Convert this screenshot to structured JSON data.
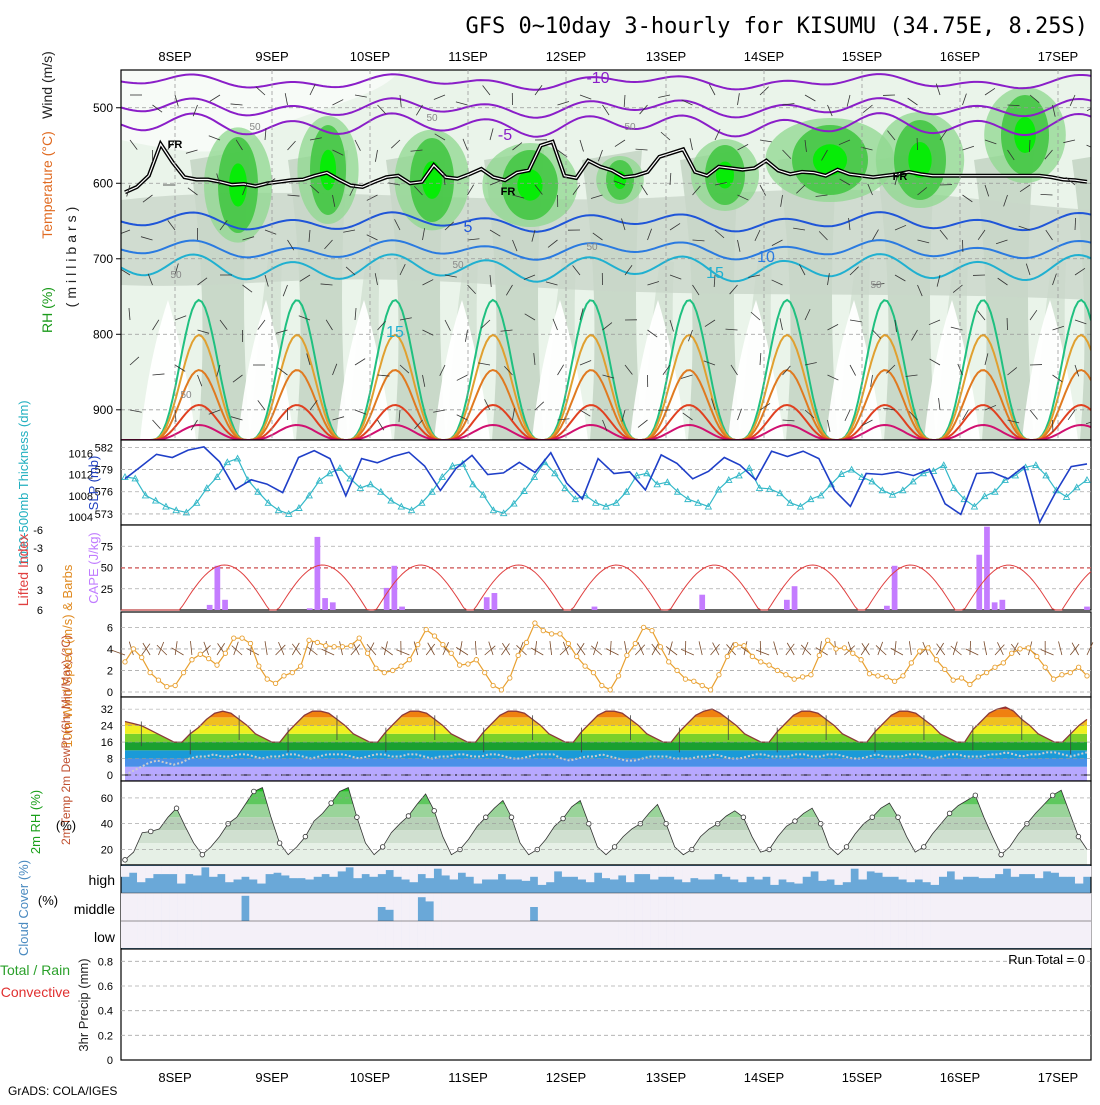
{
  "page": {
    "title": "GFS 0~10day 3-hourly for KISUMU (34.75E, 8.25S)",
    "footer": "GrADS: COLA/IGES",
    "day_labels": [
      "8SEP",
      "9SEP",
      "10SEP",
      "11SEP",
      "12SEP",
      "13SEP",
      "14SEP",
      "15SEP",
      "16SEP",
      "17SEP"
    ]
  },
  "chart_data": [
    {
      "type": "heatmap",
      "panel": "upper-air",
      "ylabel_parts": {
        "rh": "RH (%)",
        "temp": "Temperature (°C)",
        "wind": "Wind (m/s)",
        "units": "(millibars)"
      },
      "yticks": [
        500,
        600,
        700,
        800,
        900
      ],
      "ylim": [
        940,
        450
      ],
      "isotherm_labels": [
        "-10",
        "-5",
        "5",
        "10",
        "15",
        "15"
      ],
      "freezing_level_label": "FR",
      "rh_contour_label": "50",
      "freezing_level_mb": [
        612,
        605,
        590,
        548,
        572,
        592,
        595,
        595,
        598,
        602,
        601,
        604,
        600,
        598,
        596,
        595,
        590,
        586,
        595,
        603,
        605,
        598,
        592,
        590,
        600,
        598,
        576,
        592,
        594,
        588,
        581,
        592,
        596,
        586,
        583,
        550,
        545,
        590,
        593,
        570,
        578,
        583,
        592,
        590,
        585,
        565,
        560,
        555,
        585,
        590,
        578,
        580,
        582,
        580,
        570,
        583,
        588,
        585,
        586,
        590,
        582,
        588,
        590,
        592,
        590,
        588,
        585,
        588,
        590,
        590,
        590,
        590,
        590,
        590,
        590,
        590,
        590,
        590,
        592,
        595,
        596,
        598
      ]
    },
    {
      "type": "line",
      "panel": "thickness-slp",
      "ylabel_left": "1000-500mb Thickness (dm)",
      "ylabel_right": "SLP (mb)",
      "left_ticks": [
        573,
        576,
        579,
        582
      ],
      "right_ticks": [
        1004,
        1008,
        1012,
        1016
      ],
      "thickness_dm": [
        578.0,
        577.8,
        575.5,
        574.8,
        574.0,
        573.5,
        573.2,
        574.5,
        576.5,
        578.0,
        580.0,
        580.5,
        577.6,
        576.0,
        574.5,
        573.5,
        573.0,
        573.8,
        575.5,
        577.5,
        578.5,
        579.2,
        577.8,
        576.5,
        577.0,
        576.0,
        574.8,
        574.0,
        573.5,
        574.5,
        576.0,
        578.0,
        579.5,
        579.8,
        577.0,
        575.6,
        573.5,
        573.1,
        574.4,
        576.1,
        578.0,
        580.0,
        578.5,
        576.5,
        575.0,
        575.5,
        574.5,
        574.0,
        574.5,
        576.0,
        578.2,
        578.5,
        577.0,
        577.3,
        576.0,
        575.0,
        574.5,
        574.0,
        576.3,
        577.6,
        578.2,
        579.2,
        576.5,
        576.4,
        575.8,
        574.5,
        574.0,
        575.0,
        575.5,
        577.0,
        578.4,
        579.0,
        578.0,
        577.4,
        576.2,
        575.6,
        576.2,
        577.4,
        578.5,
        578.8,
        579.6,
        576.5,
        575.0,
        574.0,
        575.4,
        576.0,
        577.6,
        578.2,
        579.3,
        579.6,
        578.2,
        576.2,
        575.3,
        576.6,
        577.6
      ],
      "slp_mb": [
        1011.2,
        1013.5,
        1015.8,
        1015.2,
        1016.6,
        1017.2,
        1014.4,
        1009.2,
        1011.0,
        1010.2,
        1008.6,
        1015.2,
        1016.5,
        1015.0,
        1008.0,
        1015.0,
        1014.2,
        1015.4,
        1016.2,
        1013.6,
        1009.0,
        1013.2,
        1015.6,
        1012.0,
        1012.3,
        1014.3,
        1012.4,
        1016.1,
        1010.4,
        1007.4,
        1015.0,
        1012.2,
        1012.5,
        1009.1,
        1015.7,
        1014.1,
        1011.2,
        1012.6,
        1015.2,
        1013.8,
        1011.0,
        1016.4,
        1015.4,
        1016.4,
        1015.0,
        1009.0,
        1006.0,
        1012.2,
        1012.0,
        1012.5,
        1011.8,
        1013.0,
        1006.5,
        1004.5,
        1012.2,
        1012.4,
        1011.2,
        1013.5,
        1003.0,
        1008.6,
        1013.5,
        1014.0
      ]
    },
    {
      "type": "bar",
      "panel": "cape-lifted-index",
      "ylabel_left": "Lifted Index",
      "ylabel_right": "CAPE (J/kg)",
      "left_ticks": [
        "6",
        "3",
        "0",
        "-3",
        "-6"
      ],
      "right_ticks": [
        25,
        50,
        75
      ],
      "cape_jkg": [
        0,
        0,
        0,
        0,
        0,
        0,
        0,
        0,
        0,
        0,
        0,
        6,
        52,
        12,
        0,
        0,
        0,
        0,
        0,
        0,
        0,
        0,
        0,
        0,
        2,
        86,
        14,
        9,
        0,
        0,
        0,
        0,
        0,
        0,
        26,
        52,
        4,
        0,
        0,
        0,
        0,
        0,
        0,
        0,
        0,
        0,
        0,
        15,
        20,
        0,
        0,
        0,
        0,
        0,
        0,
        0,
        0,
        0,
        0,
        0,
        0,
        4,
        0,
        0,
        0,
        0,
        0,
        0,
        0,
        0,
        0,
        0,
        0,
        0,
        0,
        18,
        0,
        0,
        0,
        0,
        0,
        0,
        0,
        0,
        0,
        0,
        12,
        28,
        0,
        0,
        0,
        0,
        0,
        0,
        0,
        0,
        0,
        0,
        0,
        5,
        52,
        0,
        0,
        0,
        0,
        0,
        0,
        0,
        0,
        0,
        0,
        65,
        98,
        9,
        12,
        0,
        0,
        0,
        0,
        0,
        0,
        0,
        0,
        0,
        0,
        4
      ]
    },
    {
      "type": "line",
      "panel": "wind-10m",
      "ylabel": "10m Wind Speed (m/s) & Barbs",
      "yticks": [
        0,
        2,
        4,
        6
      ],
      "ylim": [
        0,
        7
      ],
      "speed_ms": [
        2.8,
        4.0,
        3.2,
        1.8,
        1.1,
        0.5,
        0.6,
        1.8,
        3.0,
        3.5,
        3.1,
        2.5,
        3.6,
        5.0,
        5.0,
        4.5,
        2.4,
        1.2,
        0.8,
        1.5,
        1.8,
        2.4,
        4.8,
        4.6,
        4.3,
        4.2,
        4.2,
        4.3,
        5.0,
        3.6,
        2.2,
        1.8,
        2.0,
        2.4,
        3.0,
        4.4,
        5.8,
        5.2,
        4.4,
        3.6,
        2.5,
        2.6,
        3.0,
        1.8,
        0.6,
        0.2,
        1.3,
        3.4,
        4.6,
        6.4,
        5.7,
        5.4,
        5.4,
        4.5,
        3.3,
        2.4,
        1.8,
        0.6,
        0.2,
        1.5,
        3.4,
        4.5,
        6.0,
        5.7,
        4.2,
        2.8,
        2.0,
        1.2,
        1.0,
        0.6,
        0.2,
        1.6,
        3.3,
        4.4,
        4.3,
        3.3,
        2.8,
        2.5,
        2.0,
        1.6,
        1.2,
        1.4,
        1.6,
        3.4,
        4.8,
        4.0,
        4.1,
        3.6,
        3.0,
        1.7,
        1.5,
        1.4,
        1.0,
        1.5,
        2.7,
        3.8,
        4.1,
        3.0,
        2.1,
        1.1,
        1.3,
        0.7,
        1.4,
        1.8,
        2.3,
        2.7,
        3.6,
        4.0,
        4.1,
        3.3,
        2.3,
        1.2,
        1.6,
        1.8,
        2.3,
        1.5
      ]
    },
    {
      "type": "area",
      "panel": "temp-dewpoint",
      "ylabel": "2m Temp 2m DewPt (6hr Min/Max) (°C)",
      "yticks": [
        0,
        8,
        16,
        24,
        32
      ],
      "ylim": [
        -1,
        35
      ],
      "temp_c": [
        26,
        25,
        24,
        22,
        20,
        18,
        16,
        16,
        20,
        23,
        27,
        30,
        31,
        30,
        27,
        24,
        20,
        18,
        16,
        16,
        21,
        25,
        29,
        31,
        31,
        30,
        27,
        24,
        20,
        18,
        16,
        16,
        21,
        25,
        29,
        31,
        31,
        30,
        27,
        24,
        20,
        18,
        16,
        16,
        21,
        25,
        29,
        31,
        31,
        30,
        27,
        24,
        20,
        18,
        16,
        16,
        21,
        25,
        29,
        31,
        31,
        30,
        27,
        24,
        20,
        18,
        16,
        16,
        21,
        25,
        29,
        31,
        32,
        30,
        27,
        24,
        20,
        18,
        16,
        16,
        21,
        25,
        29,
        31,
        31,
        30,
        27,
        24,
        20,
        18,
        16,
        16,
        21,
        25,
        29,
        31,
        31,
        30,
        27,
        24,
        20,
        18,
        16,
        16,
        22,
        26,
        30,
        32,
        33,
        31,
        27,
        24,
        20,
        18,
        16,
        16,
        20,
        24,
        27
      ],
      "dewpoint_c": [
        0,
        2,
        4,
        6,
        7,
        6,
        5,
        6,
        8,
        9,
        9,
        10,
        9,
        9,
        10,
        10,
        9,
        8,
        9,
        9,
        10,
        10,
        9,
        8,
        9,
        10,
        10,
        10,
        9,
        8,
        9,
        10,
        10,
        9,
        9,
        10,
        10,
        9,
        8,
        9,
        9,
        10,
        10,
        9,
        9,
        10,
        10,
        9,
        8,
        8,
        9,
        10,
        10,
        10,
        8,
        7,
        8,
        9,
        9,
        10,
        9,
        8,
        7,
        7,
        8,
        9,
        9,
        9,
        8,
        8,
        8,
        9,
        9,
        10,
        9,
        8,
        8,
        9,
        10,
        10,
        9,
        9,
        9,
        10,
        10,
        9,
        9,
        10,
        10,
        9,
        8,
        8,
        9,
        10,
        9,
        9,
        9,
        10,
        10,
        9,
        8,
        9,
        10,
        10,
        9,
        9,
        9,
        10,
        10,
        11,
        10,
        9,
        10,
        10,
        11,
        11,
        10,
        9,
        10,
        11
      ]
    },
    {
      "type": "area",
      "panel": "relative-humidity",
      "ylabel": "2m RH (%)",
      "yticks": [
        20,
        40,
        60
      ],
      "ylim": [
        8,
        70
      ],
      "rh_pct": [
        12,
        18,
        33,
        34,
        36,
        45,
        52,
        38,
        25,
        16,
        22,
        30,
        40,
        45,
        55,
        65,
        68,
        45,
        25,
        16,
        22,
        30,
        42,
        48,
        56,
        65,
        68,
        45,
        25,
        16,
        22,
        33,
        40,
        46,
        55,
        63,
        50,
        30,
        16,
        20,
        28,
        38,
        45,
        52,
        58,
        45,
        25,
        16,
        20,
        28,
        38,
        44,
        53,
        58,
        40,
        22,
        16,
        22,
        30,
        36,
        40,
        48,
        55,
        40,
        22,
        16,
        20,
        30,
        36,
        40,
        46,
        50,
        45,
        30,
        18,
        20,
        30,
        38,
        42,
        48,
        52,
        40,
        22,
        16,
        22,
        32,
        40,
        45,
        52,
        56,
        45,
        30,
        18,
        22,
        32,
        40,
        48,
        54,
        58,
        62,
        45,
        30,
        16,
        22,
        32,
        40,
        48,
        55,
        62,
        66,
        48,
        30,
        20
      ]
    },
    {
      "type": "bar",
      "panel": "cloud-cover",
      "ylabel": "Cloud Cover (%)",
      "row_labels": [
        "high",
        "middle",
        "low"
      ],
      "high_pct": [
        60,
        75,
        40,
        55,
        70,
        70,
        70,
        35,
        70,
        65,
        95,
        60,
        70,
        40,
        50,
        60,
        50,
        35,
        70,
        75,
        65,
        55,
        55,
        50,
        60,
        70,
        60,
        80,
        95,
        55,
        70,
        60,
        70,
        85,
        60,
        50,
        40,
        70,
        55,
        90,
        65,
        50,
        75,
        60,
        35,
        50,
        50,
        70,
        50,
        50,
        45,
        60,
        30,
        40,
        80,
        60,
        60,
        50,
        40,
        75,
        55,
        50,
        65,
        40,
        70,
        70,
        50,
        60,
        60,
        50,
        40,
        55,
        50,
        50,
        70,
        60,
        50,
        40,
        60,
        50,
        60,
        30,
        50,
        40,
        35,
        60,
        80,
        45,
        50,
        30,
        40,
        90,
        50,
        80,
        75,
        60,
        60,
        50,
        40,
        50,
        40,
        30,
        60,
        80,
        50,
        60,
        60,
        55,
        55,
        70,
        90,
        60,
        70,
        70,
        55,
        80,
        75,
        60,
        60,
        35,
        60
      ],
      "middle_pct": [
        0,
        0,
        0,
        0,
        0,
        0,
        0,
        0,
        0,
        0,
        0,
        0,
        0,
        0,
        0,
        90,
        0,
        0,
        0,
        0,
        0,
        0,
        0,
        0,
        0,
        0,
        0,
        0,
        0,
        0,
        0,
        0,
        50,
        40,
        0,
        0,
        0,
        85,
        70,
        0,
        0,
        0,
        0,
        0,
        0,
        0,
        0,
        0,
        0,
        0,
        0,
        50,
        0,
        0,
        0,
        0,
        0,
        0,
        0,
        0,
        0,
        0,
        0,
        0,
        0,
        0,
        0,
        0,
        0,
        0,
        0,
        0,
        0,
        0,
        0,
        0,
        0,
        0,
        0,
        0,
        0,
        0,
        0,
        0,
        0,
        0,
        0,
        0,
        0,
        0,
        0,
        0,
        0,
        0,
        0,
        0,
        0,
        0,
        0,
        0,
        0,
        0,
        0,
        0,
        0,
        0,
        0,
        0,
        0,
        0,
        0,
        0,
        0,
        0,
        0,
        0,
        0,
        0,
        0,
        0,
        0
      ],
      "low_pct": [
        0,
        0,
        0,
        0,
        0,
        0,
        0,
        0,
        0,
        0,
        0,
        0,
        0,
        0,
        0,
        0,
        0,
        0,
        0,
        0,
        0,
        0,
        0,
        0,
        0,
        0,
        0,
        0,
        0,
        0,
        0,
        0,
        0,
        0,
        0,
        0,
        0,
        0,
        0,
        0,
        0,
        0,
        0,
        0,
        0,
        0,
        0,
        0,
        0,
        0,
        0,
        0,
        0,
        0,
        0,
        0,
        0,
        0,
        0,
        0,
        0,
        0,
        0,
        0,
        0,
        0,
        0,
        0,
        0,
        0,
        0,
        0,
        0,
        0,
        0,
        0,
        0,
        0,
        0,
        0,
        0,
        0,
        0,
        0,
        0,
        0,
        0,
        0,
        0,
        0,
        0,
        0,
        0,
        0,
        0,
        0,
        0,
        0,
        0,
        0,
        0,
        0,
        0,
        0,
        0,
        0,
        0,
        0,
        0,
        0,
        0,
        0,
        0,
        0,
        0,
        0,
        0,
        0,
        0,
        0,
        0
      ]
    },
    {
      "type": "bar",
      "panel": "precipitation",
      "ylabel_left": "Total / Rain",
      "ylabel_left2": "Convective",
      "ylabel": "3hr Precip (mm)",
      "run_total": "Run Total = 0",
      "yticks": [
        "0",
        "0.2",
        "0.4",
        "0.6",
        "0.8"
      ],
      "ylim": [
        0,
        0.9
      ],
      "precip_mm": []
    }
  ],
  "colors": {
    "thickness": "#33b8c8",
    "slp": "#1f3fc8",
    "cape": "#c47cff",
    "lifted_index": "#e04040",
    "wind_speed": "#e8a030",
    "rh2m": "#28c028",
    "cloud": "#6aa8d8"
  }
}
